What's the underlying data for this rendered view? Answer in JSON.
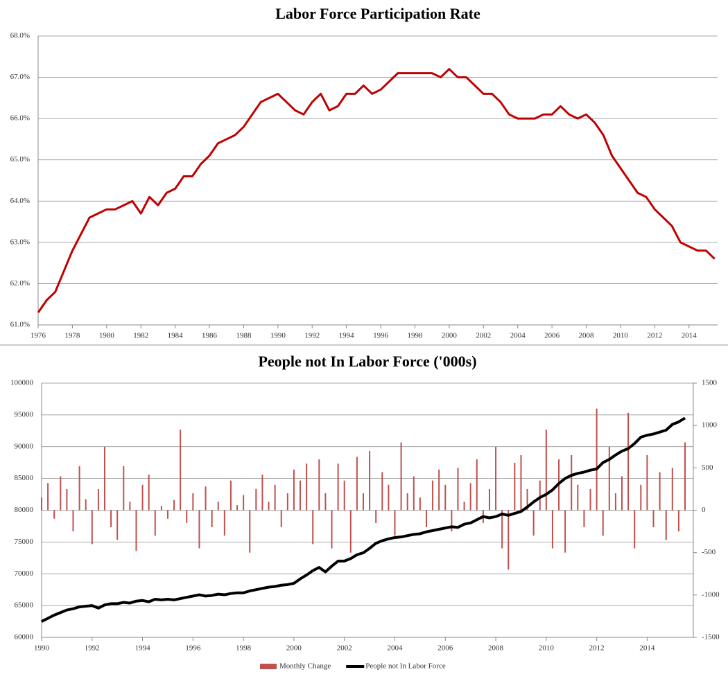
{
  "chart_data": [
    {
      "type": "line",
      "title": "Labor Force Participation Rate",
      "x": [
        1976,
        1976.5,
        1977,
        1977.5,
        1978,
        1978.5,
        1979,
        1979.5,
        1980,
        1980.5,
        1981,
        1981.5,
        1982,
        1982.5,
        1983,
        1983.5,
        1984,
        1984.5,
        1985,
        1985.5,
        1986,
        1986.5,
        1987,
        1987.5,
        1988,
        1988.5,
        1989,
        1989.5,
        1990,
        1990.5,
        1991,
        1991.5,
        1992,
        1992.5,
        1993,
        1993.5,
        1994,
        1994.5,
        1995,
        1995.5,
        1996,
        1996.5,
        1997,
        1997.5,
        1998,
        1998.5,
        1999,
        1999.5,
        2000,
        2000.5,
        2001,
        2001.5,
        2002,
        2002.5,
        2003,
        2003.5,
        2004,
        2004.5,
        2005,
        2005.5,
        2006,
        2006.5,
        2007,
        2007.5,
        2008,
        2008.5,
        2009,
        2009.5,
        2010,
        2010.5,
        2011,
        2011.5,
        2012,
        2012.5,
        2013,
        2013.5,
        2014,
        2014.5,
        2015,
        2015.5
      ],
      "series": [
        {
          "color": "#c00000",
          "values": [
            61.3,
            61.6,
            61.8,
            62.3,
            62.8,
            63.2,
            63.6,
            63.7,
            63.8,
            63.8,
            63.9,
            64.0,
            63.7,
            64.1,
            63.9,
            64.2,
            64.3,
            64.6,
            64.6,
            64.9,
            65.1,
            65.4,
            65.5,
            65.6,
            65.8,
            66.1,
            66.4,
            66.5,
            66.6,
            66.4,
            66.2,
            66.1,
            66.4,
            66.6,
            66.2,
            66.3,
            66.6,
            66.6,
            66.8,
            66.6,
            66.7,
            66.9,
            67.1,
            67.1,
            67.1,
            67.1,
            67.1,
            67.0,
            67.2,
            67.0,
            67.0,
            66.8,
            66.6,
            66.6,
            66.4,
            66.1,
            66.0,
            66.0,
            66.0,
            66.1,
            66.1,
            66.3,
            66.1,
            66.0,
            66.1,
            65.9,
            65.6,
            65.1,
            64.8,
            64.5,
            64.2,
            64.1,
            63.8,
            63.6,
            63.4,
            63.0,
            62.9,
            62.8,
            62.8,
            62.6
          ]
        }
      ],
      "xlim": [
        1976,
        2015.67
      ],
      "xticks": [
        1976,
        1978,
        1980,
        1982,
        1984,
        1986,
        1988,
        1990,
        1992,
        1994,
        1996,
        1998,
        2000,
        2002,
        2004,
        2006,
        2008,
        2010,
        2012,
        2014
      ],
      "ylim": [
        61,
        68
      ],
      "yticks": [
        {
          "value": 61,
          "label": "61.0%"
        },
        {
          "value": 62,
          "label": "62.0%"
        },
        {
          "value": 63,
          "label": "63.0%"
        },
        {
          "value": 64,
          "label": "64.0%"
        },
        {
          "value": 65,
          "label": "65.0%"
        },
        {
          "value": 66,
          "label": "66.0%"
        },
        {
          "value": 67,
          "label": "67.0%"
        },
        {
          "value": 68,
          "label": "68.0%"
        }
      ],
      "grid": true
    },
    {
      "type": "bar-line",
      "title": "People not In Labor Force ('000s)",
      "x": [
        1990,
        1990.25,
        1990.5,
        1990.75,
        1991,
        1991.25,
        1991.5,
        1991.75,
        1992,
        1992.25,
        1992.5,
        1992.75,
        1993,
        1993.25,
        1993.5,
        1993.75,
        1994,
        1994.25,
        1994.5,
        1994.75,
        1995,
        1995.25,
        1995.5,
        1995.75,
        1996,
        1996.25,
        1996.5,
        1996.75,
        1997,
        1997.25,
        1997.5,
        1997.75,
        1998,
        1998.25,
        1998.5,
        1998.75,
        1999,
        1999.25,
        1999.5,
        1999.75,
        2000,
        2000.25,
        2000.5,
        2000.75,
        2001,
        2001.25,
        2001.5,
        2001.75,
        2002,
        2002.25,
        2002.5,
        2002.75,
        2003,
        2003.25,
        2003.5,
        2003.75,
        2004,
        2004.25,
        2004.5,
        2004.75,
        2005,
        2005.25,
        2005.5,
        2005.75,
        2006,
        2006.25,
        2006.5,
        2006.75,
        2007,
        2007.25,
        2007.5,
        2007.75,
        2008,
        2008.25,
        2008.5,
        2008.75,
        2009,
        2009.25,
        2009.5,
        2009.75,
        2010,
        2010.25,
        2010.5,
        2010.75,
        2011,
        2011.25,
        2011.5,
        2011.75,
        2012,
        2012.25,
        2012.5,
        2012.75,
        2013,
        2013.25,
        2013.5,
        2013.75,
        2014,
        2014.25,
        2014.5,
        2014.75,
        2015,
        2015.25,
        2015.5
      ],
      "series": [
        {
          "name": "Monthly Change",
          "type": "bar",
          "axis": "y2",
          "color": "#c0504d",
          "values": [
            150,
            320,
            -100,
            400,
            250,
            -250,
            520,
            130,
            -400,
            250,
            750,
            -200,
            -350,
            520,
            100,
            -480,
            300,
            420,
            -300,
            50,
            -100,
            120,
            950,
            -150,
            200,
            -450,
            280,
            -200,
            100,
            -300,
            350,
            60,
            180,
            -500,
            250,
            420,
            100,
            300,
            -200,
            200,
            480,
            350,
            550,
            -400,
            600,
            200,
            -450,
            550,
            350,
            -500,
            630,
            200,
            700,
            -150,
            450,
            300,
            -300,
            800,
            200,
            400,
            150,
            -200,
            350,
            480,
            300,
            -250,
            500,
            100,
            320,
            600,
            -150,
            250,
            750,
            -450,
            -700,
            560,
            650,
            250,
            -300,
            350,
            950,
            -450,
            600,
            -500,
            650,
            300,
            -200,
            250,
            1200,
            -300,
            750,
            200,
            400,
            1150,
            -450,
            300,
            650,
            -200,
            450,
            -350,
            500,
            -250,
            800
          ]
        },
        {
          "name": "People not In Labor Force",
          "type": "line",
          "color": "#000000",
          "values": [
            62500,
            63000,
            63500,
            63900,
            64300,
            64500,
            64800,
            64900,
            65000,
            64600,
            65100,
            65300,
            65300,
            65500,
            65400,
            65700,
            65800,
            65600,
            66000,
            65900,
            66000,
            65900,
            66100,
            66300,
            66500,
            66700,
            66500,
            66600,
            66800,
            66700,
            66900,
            67000,
            67000,
            67300,
            67500,
            67700,
            67900,
            68000,
            68200,
            68300,
            68500,
            69200,
            69800,
            70500,
            71000,
            70300,
            71200,
            72000,
            72000,
            72400,
            73000,
            73300,
            74000,
            74800,
            75200,
            75500,
            75700,
            75800,
            76000,
            76200,
            76300,
            76600,
            76800,
            77000,
            77200,
            77400,
            77300,
            77800,
            78000,
            78500,
            79000,
            78800,
            79000,
            79400,
            79200,
            79500,
            79800,
            80500,
            81300,
            82000,
            82500,
            83200,
            84200,
            85000,
            85500,
            85800,
            86000,
            86300,
            86500,
            87500,
            88000,
            88700,
            89300,
            89700,
            90500,
            91500,
            91800,
            92000,
            92300,
            92600,
            93500,
            93900,
            94500
          ]
        }
      ],
      "xlim": [
        1990,
        2015.83
      ],
      "xticks": [
        1990,
        1992,
        1994,
        1996,
        1998,
        2000,
        2002,
        2004,
        2006,
        2008,
        2010,
        2012,
        2014
      ],
      "ylim": [
        60000,
        100000
      ],
      "yticks": [
        60000,
        65000,
        70000,
        75000,
        80000,
        85000,
        90000,
        95000,
        100000
      ],
      "y2lim": [
        -1500,
        1500
      ],
      "y2ticks": [
        -1500,
        -1000,
        -500,
        0,
        500,
        1000,
        1500
      ],
      "y2color": "#c00000",
      "grid": true,
      "legend": "bottom"
    }
  ]
}
